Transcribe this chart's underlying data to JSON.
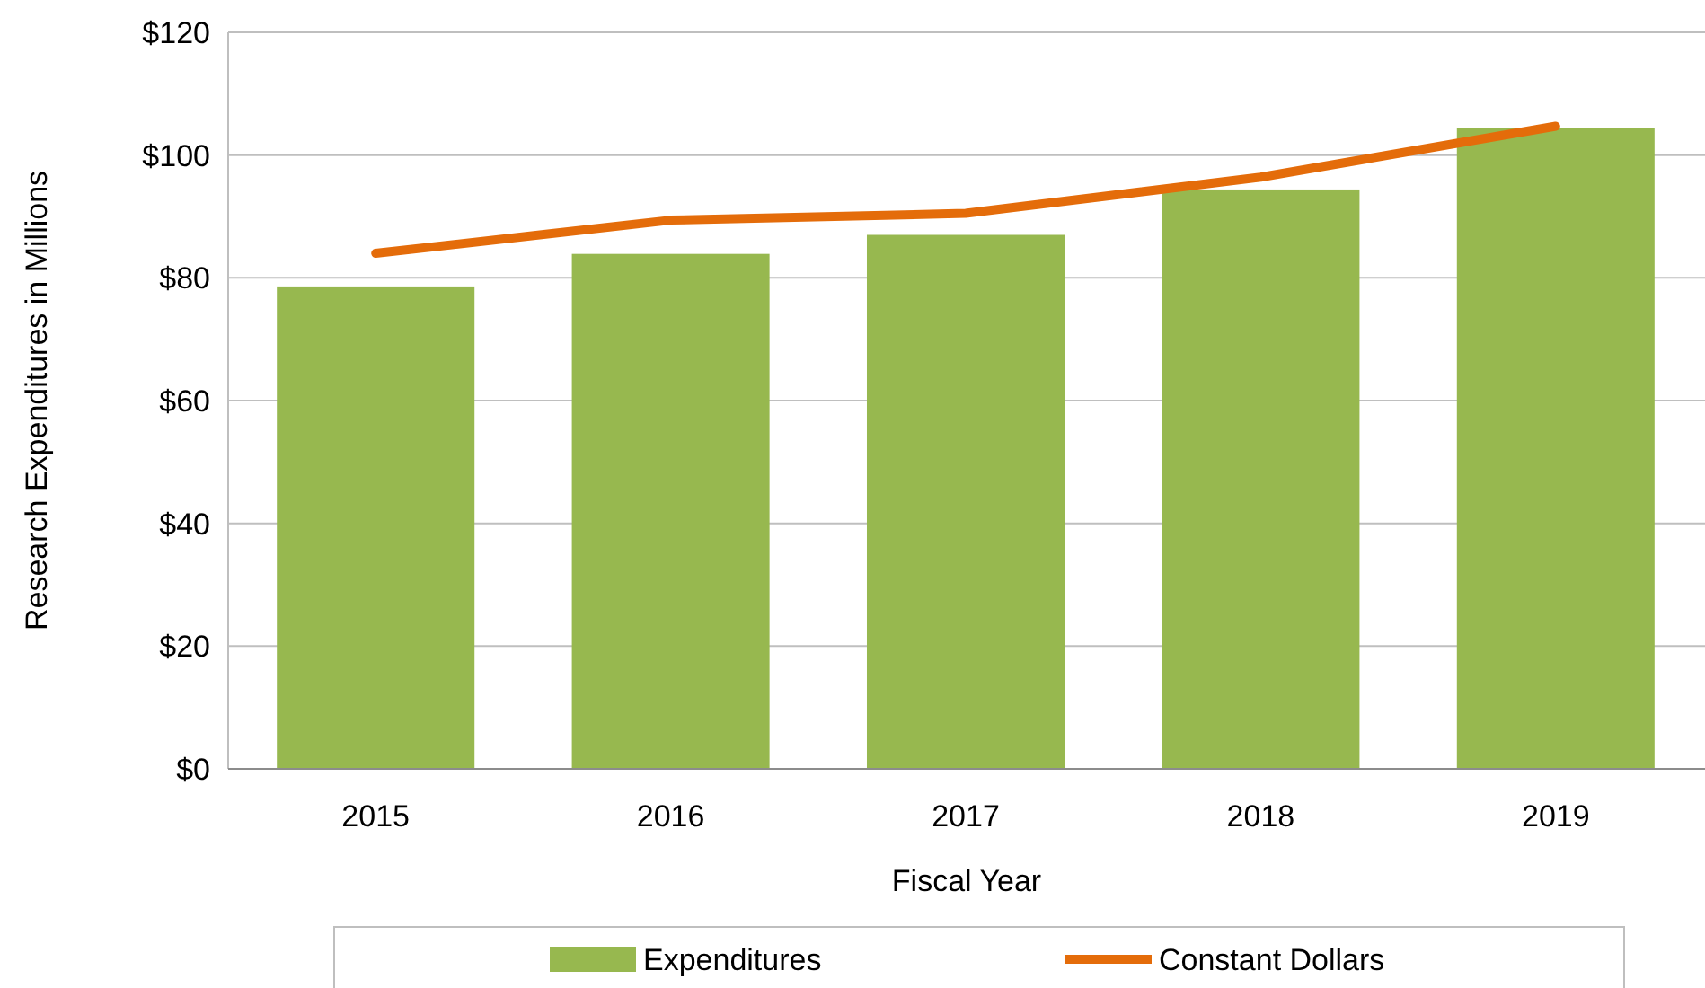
{
  "chart_data": {
    "type": "bar",
    "xlabel": "Fiscal Year",
    "ylabel": "Research Expenditures in Millions",
    "categories": [
      "2015",
      "2016",
      "2017",
      "2018",
      "2019"
    ],
    "series": [
      {
        "name": "Expenditures",
        "color": "#97b84f",
        "values": [
          78.6,
          83.9,
          87.0,
          94.4,
          104.4
        ]
      },
      {
        "name": "Constant Dollars",
        "type": "line",
        "color": "#e46c0a",
        "values": [
          84.0,
          89.4,
          90.5,
          96.4,
          104.7
        ]
      }
    ],
    "ylim": [
      0,
      120
    ],
    "yticks": [
      {
        "value": 0,
        "label": "$0"
      },
      {
        "value": 20,
        "label": "$20"
      },
      {
        "value": 40,
        "label": "$40"
      },
      {
        "value": 60,
        "label": "$60"
      },
      {
        "value": 80,
        "label": "$80"
      },
      {
        "value": 100,
        "label": "$100"
      },
      {
        "value": 120,
        "label": "$120"
      }
    ],
    "grid": "y",
    "legend": "bottom",
    "marker": "none",
    "line_style": "solid"
  }
}
